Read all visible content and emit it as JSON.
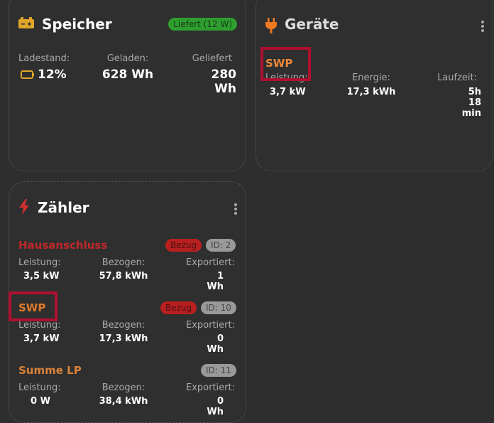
{
  "speicher": {
    "title": "Speicher",
    "icon": "battery-icon",
    "status": "Liefert (12 W)",
    "status_color": "#2e9e2e",
    "ladestand_label": "Ladestand:",
    "ladestand": "12%",
    "geladen_label": "Geladen:",
    "geladen": "628 Wh",
    "geliefert_label": "Geliefert",
    "geliefert": "280 Wh"
  },
  "geraete": {
    "title": "Geräte",
    "icon": "plug-icon",
    "device": {
      "name": "SWP",
      "leistung_label": "Leistung:",
      "leistung": "3,7 kW",
      "energie_label": "Energie:",
      "energie": "17,3 kWh",
      "laufzeit_label": "Laufzeit:",
      "laufzeit": "5h 18 min"
    }
  },
  "zaehler": {
    "title": "Zähler",
    "icon": "lightning-icon",
    "items": [
      {
        "name": "Hausanschluss",
        "color": "#c0282a",
        "badge": "Bezug",
        "id": "ID: 2",
        "leistung_label": "Leistung:",
        "leistung": "3,5 kW",
        "bezogen_label": "Bezogen:",
        "bezogen": "57,8 kWh",
        "exportiert_label": "Exportiert:",
        "exportiert": "1 Wh"
      },
      {
        "name": "SWP",
        "color": "#e07a2a",
        "badge": "Bezug",
        "id": "ID: 10",
        "leistung_label": "Leistung:",
        "leistung": "3,7 kW",
        "bezogen_label": "Bezogen:",
        "bezogen": "17,3 kWh",
        "exportiert_label": "Exportiert:",
        "exportiert": "0 Wh"
      },
      {
        "name": "Summe LP",
        "color": "#d9823a",
        "id": "ID: 11",
        "leistung_label": "Leistung:",
        "leistung": "0 W",
        "bezogen_label": "Bezogen:",
        "bezogen": "38,4 kWh",
        "exportiert_label": "Exportiert:",
        "exportiert": "0 Wh"
      }
    ]
  }
}
